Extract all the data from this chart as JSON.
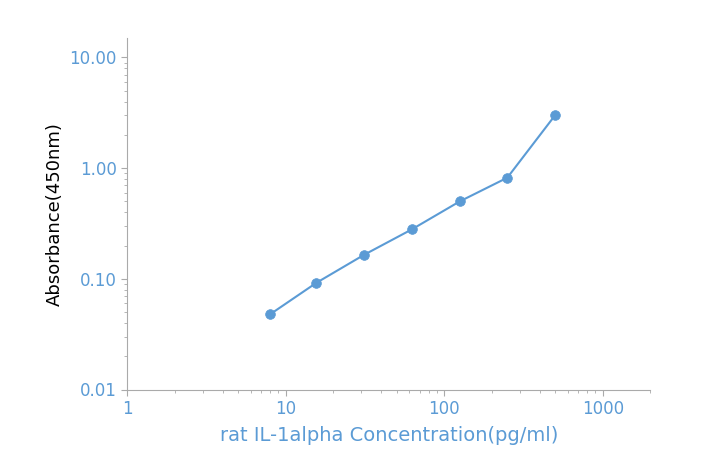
{
  "x": [
    8,
    15.6,
    31.25,
    62.5,
    125,
    250,
    500
  ],
  "y": [
    0.048,
    0.092,
    0.165,
    0.28,
    0.5,
    0.82,
    3.0
  ],
  "line_color": "#5B9BD5",
  "marker_color": "#5B9BD5",
  "marker_style": "o",
  "marker_size": 7,
  "line_width": 1.5,
  "xlabel": "rat IL-1alpha Concentration(pg/ml)",
  "ylabel": "Absorbance(450nm)",
  "xlabel_fontsize": 14,
  "ylabel_fontsize": 13,
  "tick_label_color": "#5B9BD5",
  "xlim": [
    1,
    2000
  ],
  "ylim": [
    0.01,
    15
  ],
  "xticks": [
    1,
    10,
    100,
    1000
  ],
  "yticks": [
    0.01,
    0.1,
    1,
    10
  ],
  "background_color": "#ffffff",
  "spine_color": "#aaaaaa",
  "tick_color": "#aaaaaa"
}
